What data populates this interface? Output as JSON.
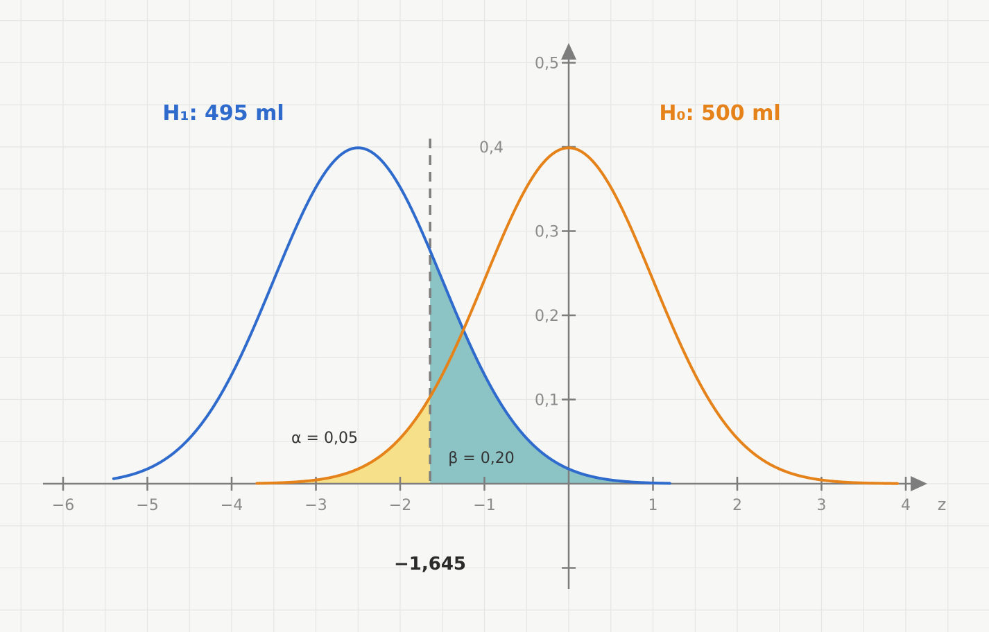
{
  "chart_data": {
    "type": "line",
    "x_axis": {
      "label": "z",
      "range": [
        -6.2,
        4.2
      ],
      "ticks": [
        -6,
        -5,
        -4,
        -3,
        -2,
        -1,
        1,
        2,
        3,
        4
      ],
      "tick_labels": [
        "−6",
        "−5",
        "−4",
        "−3",
        "−2",
        "−1",
        "1",
        "2",
        "3",
        "4"
      ]
    },
    "y_axis": {
      "range": [
        -0.12,
        0.5
      ],
      "ticks": [
        0.1,
        0.2,
        0.3,
        0.4,
        0.5
      ],
      "tick_labels": [
        "0,1",
        "0,2",
        "0,3",
        "0,4",
        "0,5"
      ]
    },
    "grid": true,
    "series": [
      {
        "name": "H₁: 495 ml",
        "distribution": "normal",
        "mean": -2.5,
        "sd": 1,
        "x_range": [
          -5.4,
          1.2
        ],
        "color": "#2f6bcc"
      },
      {
        "name": "H₀: 500 ml",
        "distribution": "normal",
        "mean": 0,
        "sd": 1,
        "x_range": [
          -3.7,
          3.9
        ],
        "color": "#e5831a"
      }
    ],
    "critical_value": -1.645,
    "critical_label": "−1,645",
    "regions": [
      {
        "label": "α = 0,05",
        "under_series": 1,
        "x_from": -3.7,
        "x_to": -1.645,
        "color": "#f6e08a"
      },
      {
        "label": "β = 0,20",
        "under_series": 0,
        "x_from": -1.645,
        "x_to": 1.2,
        "color": "#8cc4c6"
      }
    ]
  }
}
